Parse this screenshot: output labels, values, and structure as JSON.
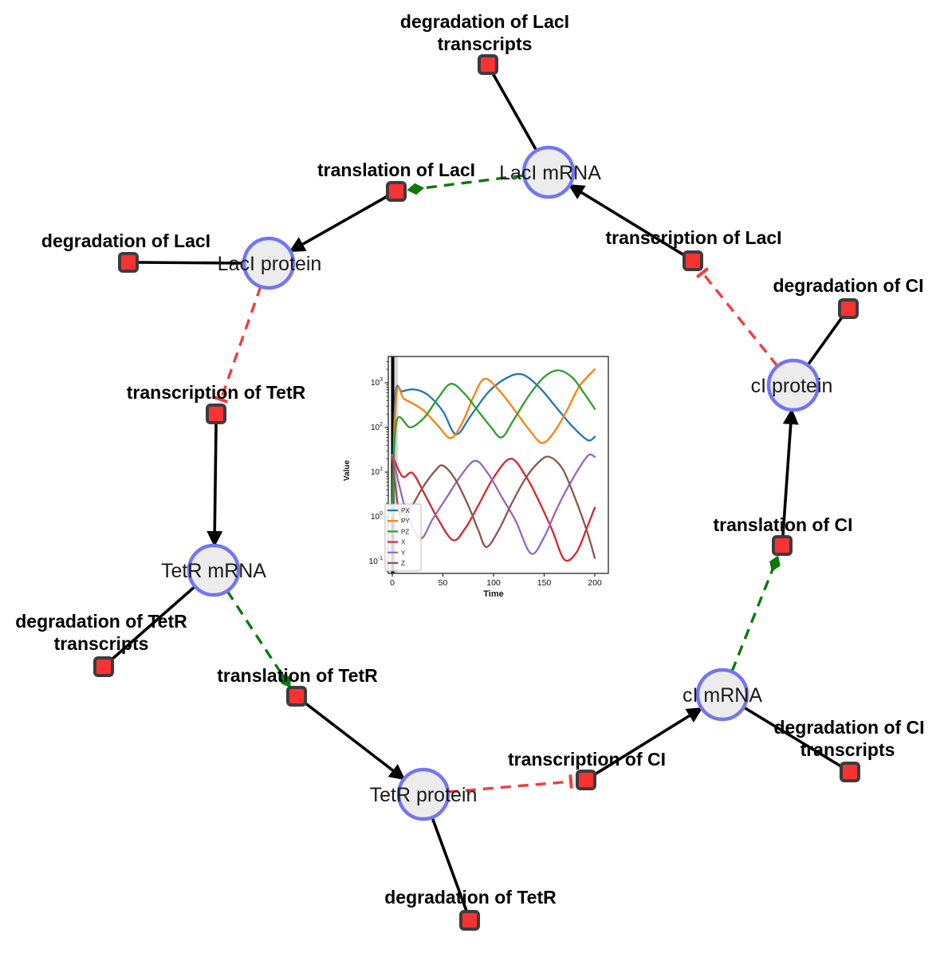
{
  "diagram": {
    "colors": {
      "species_fill": "#ececec",
      "species_border": "#7376f1",
      "reaction_fill": "#fb3232",
      "reaction_border": "#3c3c3c",
      "edge_black": "#000000",
      "edge_green_dashed": "#0b7a0b",
      "edge_red_dashed": "#f63b3b"
    },
    "species": [
      {
        "id": "laci-mrna",
        "label": "LacI mRNA"
      },
      {
        "id": "laci-protein",
        "label": "LacI protein"
      },
      {
        "id": "tetr-mrna",
        "label": "TetR mRNA"
      },
      {
        "id": "tetr-protein",
        "label": "TetR protein"
      },
      {
        "id": "ci-mrna",
        "label": "cI mRNA"
      },
      {
        "id": "ci-protein",
        "label": "cI protein"
      }
    ],
    "reactions": [
      {
        "id": "degradation-of-laci-transcripts",
        "lines": [
          "degradation of LacI",
          "transcripts"
        ]
      },
      {
        "id": "translation-of-laci",
        "lines": [
          "translation of LacI"
        ]
      },
      {
        "id": "degradation-of-laci",
        "lines": [
          "degradation of LacI"
        ]
      },
      {
        "id": "transcription-of-laci",
        "lines": [
          "transcription of LacI"
        ]
      },
      {
        "id": "degradation-of-ci",
        "lines": [
          "degradation of CI"
        ]
      },
      {
        "id": "transcription-of-tetr",
        "lines": [
          "transcription of TetR"
        ]
      },
      {
        "id": "degradation-of-tetr-transcripts",
        "lines": [
          "degradation of TetR",
          "transcripts"
        ]
      },
      {
        "id": "translation-of-tetr",
        "lines": [
          "translation of TetR"
        ]
      },
      {
        "id": "degradation-of-tetr",
        "lines": [
          "degradation of TetR"
        ]
      },
      {
        "id": "transcription-of-ci",
        "lines": [
          "transcription of CI"
        ]
      },
      {
        "id": "degradation-of-ci-transcripts",
        "lines": [
          "degradation of CI",
          "transcripts"
        ]
      },
      {
        "id": "translation-of-ci",
        "lines": [
          "translation of CI"
        ]
      }
    ]
  },
  "chart_data": {
    "type": "line",
    "title": "",
    "xlabel": "Time",
    "ylabel": "Value",
    "x_ticks": [
      0,
      50,
      100,
      150,
      200
    ],
    "y_scale": "log",
    "y_tick_exponents": [
      -1,
      0,
      1,
      2,
      3
    ],
    "xlim": [
      -4,
      213
    ],
    "ylim_log10": [
      -1.27,
      3.59
    ],
    "vline_x": 0,
    "grid": false,
    "legend_position": "lower left",
    "series": [
      {
        "name": "PX",
        "color": "#1f77b4",
        "points": [
          [
            0,
            1
          ],
          [
            3,
            500
          ],
          [
            10,
            640
          ],
          [
            22,
            710
          ],
          [
            35,
            540
          ],
          [
            50,
            230
          ],
          [
            63,
            70
          ],
          [
            78,
            190
          ],
          [
            95,
            620
          ],
          [
            112,
            1250
          ],
          [
            128,
            1550
          ],
          [
            145,
            800
          ],
          [
            162,
            280
          ],
          [
            178,
            105
          ],
          [
            193,
            52
          ],
          [
            200,
            62
          ]
        ]
      },
      {
        "name": "PY",
        "color": "#ff7f0e",
        "points": [
          [
            0,
            1
          ],
          [
            4,
            520
          ],
          [
            12,
            430
          ],
          [
            30,
            250
          ],
          [
            45,
            110
          ],
          [
            58,
            58
          ],
          [
            70,
            140
          ],
          [
            80,
            480
          ],
          [
            91,
            1230
          ],
          [
            105,
            700
          ],
          [
            120,
            260
          ],
          [
            135,
            90
          ],
          [
            148,
            45
          ],
          [
            160,
            80
          ],
          [
            172,
            230
          ],
          [
            185,
            850
          ],
          [
            200,
            2000
          ]
        ]
      },
      {
        "name": "PZ",
        "color": "#2ca02c",
        "points": [
          [
            0,
            1
          ],
          [
            4,
            130
          ],
          [
            18,
            100
          ],
          [
            32,
            170
          ],
          [
            45,
            450
          ],
          [
            58,
            950
          ],
          [
            72,
            550
          ],
          [
            85,
            230
          ],
          [
            97,
            105
          ],
          [
            108,
            60
          ],
          [
            120,
            150
          ],
          [
            135,
            520
          ],
          [
            150,
            1350
          ],
          [
            164,
            1900
          ],
          [
            178,
            1300
          ],
          [
            190,
            560
          ],
          [
            200,
            260
          ]
        ]
      },
      {
        "name": "X",
        "color": "#d62728",
        "points": [
          [
            0,
            24
          ],
          [
            10,
            8
          ],
          [
            20,
            9.5
          ],
          [
            32,
            3.2
          ],
          [
            45,
            0.9
          ],
          [
            60,
            0.3
          ],
          [
            72,
            0.55
          ],
          [
            85,
            1.8
          ],
          [
            100,
            7.5
          ],
          [
            117,
            20
          ],
          [
            132,
            8
          ],
          [
            145,
            2.2
          ],
          [
            158,
            0.5
          ],
          [
            170,
            0.11
          ],
          [
            182,
            0.16
          ],
          [
            192,
            0.55
          ],
          [
            200,
            1.6
          ]
        ]
      },
      {
        "name": "Y",
        "color": "#9467bd",
        "points": [
          [
            0,
            24
          ],
          [
            8,
            4
          ],
          [
            15,
            1.1
          ],
          [
            28,
            0.33
          ],
          [
            40,
            0.9
          ],
          [
            55,
            3
          ],
          [
            68,
            8.5
          ],
          [
            82,
            18
          ],
          [
            95,
            9
          ],
          [
            108,
            2.8
          ],
          [
            122,
            0.8
          ],
          [
            137,
            0.15
          ],
          [
            150,
            0.35
          ],
          [
            163,
            1.6
          ],
          [
            178,
            7
          ],
          [
            193,
            23
          ],
          [
            200,
            22
          ]
        ]
      },
      {
        "name": "Z",
        "color": "#8c564b",
        "points": [
          [
            0,
            22
          ],
          [
            5,
            2.2
          ],
          [
            10,
            0.8
          ],
          [
            18,
            1.5
          ],
          [
            30,
            4.5
          ],
          [
            42,
            10.5
          ],
          [
            50,
            14
          ],
          [
            62,
            7
          ],
          [
            75,
            1.8
          ],
          [
            85,
            0.5
          ],
          [
            93,
            0.21
          ],
          [
            105,
            0.5
          ],
          [
            118,
            2
          ],
          [
            132,
            7.5
          ],
          [
            145,
            17
          ],
          [
            155,
            22
          ],
          [
            168,
            12
          ],
          [
            180,
            2.8
          ],
          [
            192,
            0.5
          ],
          [
            200,
            0.12
          ]
        ]
      }
    ]
  }
}
